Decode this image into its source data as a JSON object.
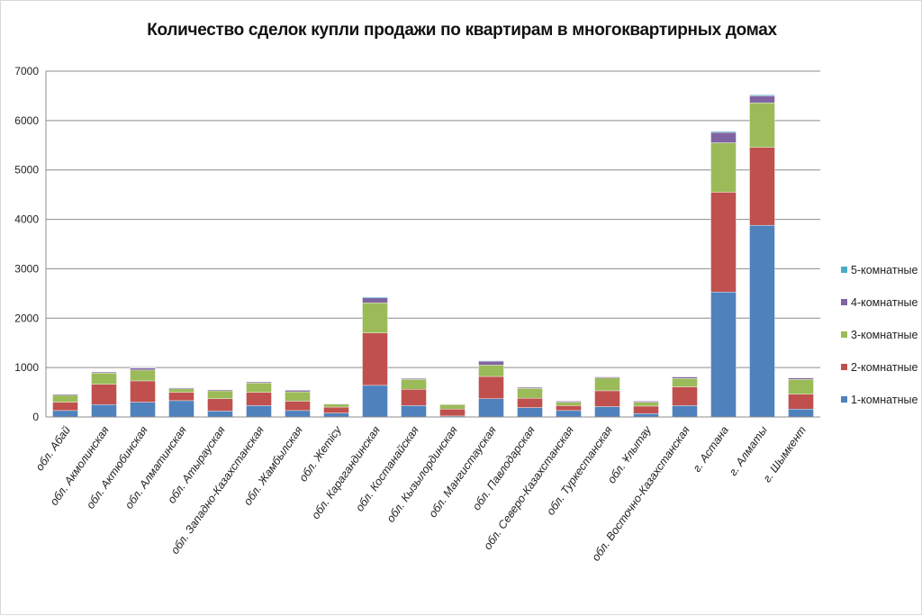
{
  "chart_data": {
    "type": "bar",
    "stacked": true,
    "title": "Количество сделок купли продажи по квартирам в многоквартирных домах",
    "xlabel": "",
    "ylabel": "",
    "ylim": [
      0,
      7000
    ],
    "yticks": [
      "0",
      "1000",
      "2000",
      "3000",
      "4000",
      "5000",
      "6000",
      "7000"
    ],
    "grid": true,
    "legend_position": "right",
    "categories": [
      "обл. Абай",
      "обл. Акмолинская",
      "обл. Актюбинская",
      "обл. Алматинская",
      "обл. Атырауская",
      "обл. Западно-Казахстанская",
      "обл. Жамбылская",
      "обл. Жетісу",
      "обл. Карагандинская",
      "обл. Костанайская",
      "обл. Кызылординская",
      "обл. Мангистауская",
      "обл. Павлодарская",
      "обл. Северо-Казахстанская",
      "обл. Туркестанская",
      "обл. Ұлытау",
      "обл. Восточно-Казахстанская",
      "г. Астана",
      "г. Алматы",
      "г. Шымкент"
    ],
    "series": [
      {
        "name": "1-комнатные",
        "color": "#4f81bd",
        "values": [
          130,
          250,
          300,
          330,
          120,
          230,
          130,
          80,
          640,
          230,
          20,
          370,
          190,
          130,
          210,
          70,
          230,
          2530,
          3880,
          160
        ]
      },
      {
        "name": "2-комнатные",
        "color": "#c0504d",
        "values": [
          170,
          410,
          430,
          170,
          250,
          270,
          190,
          120,
          1060,
          330,
          140,
          450,
          190,
          100,
          320,
          150,
          380,
          2020,
          1580,
          300
        ]
      },
      {
        "name": "3-комнатные",
        "color": "#9bbb59",
        "values": [
          140,
          230,
          220,
          70,
          160,
          190,
          190,
          60,
          610,
          200,
          90,
          230,
          200,
          70,
          260,
          80,
          170,
          1000,
          900,
          300
        ]
      },
      {
        "name": "4-комнатные",
        "color": "#8064a2",
        "values": [
          20,
          20,
          40,
          20,
          20,
          20,
          30,
          10,
          100,
          20,
          10,
          80,
          20,
          20,
          20,
          20,
          30,
          210,
          140,
          30
        ]
      },
      {
        "name": "5-комнатные",
        "color": "#4bacc6",
        "values": [
          0,
          0,
          10,
          0,
          0,
          0,
          0,
          0,
          20,
          0,
          0,
          10,
          0,
          0,
          0,
          0,
          0,
          20,
          20,
          0
        ]
      }
    ]
  }
}
